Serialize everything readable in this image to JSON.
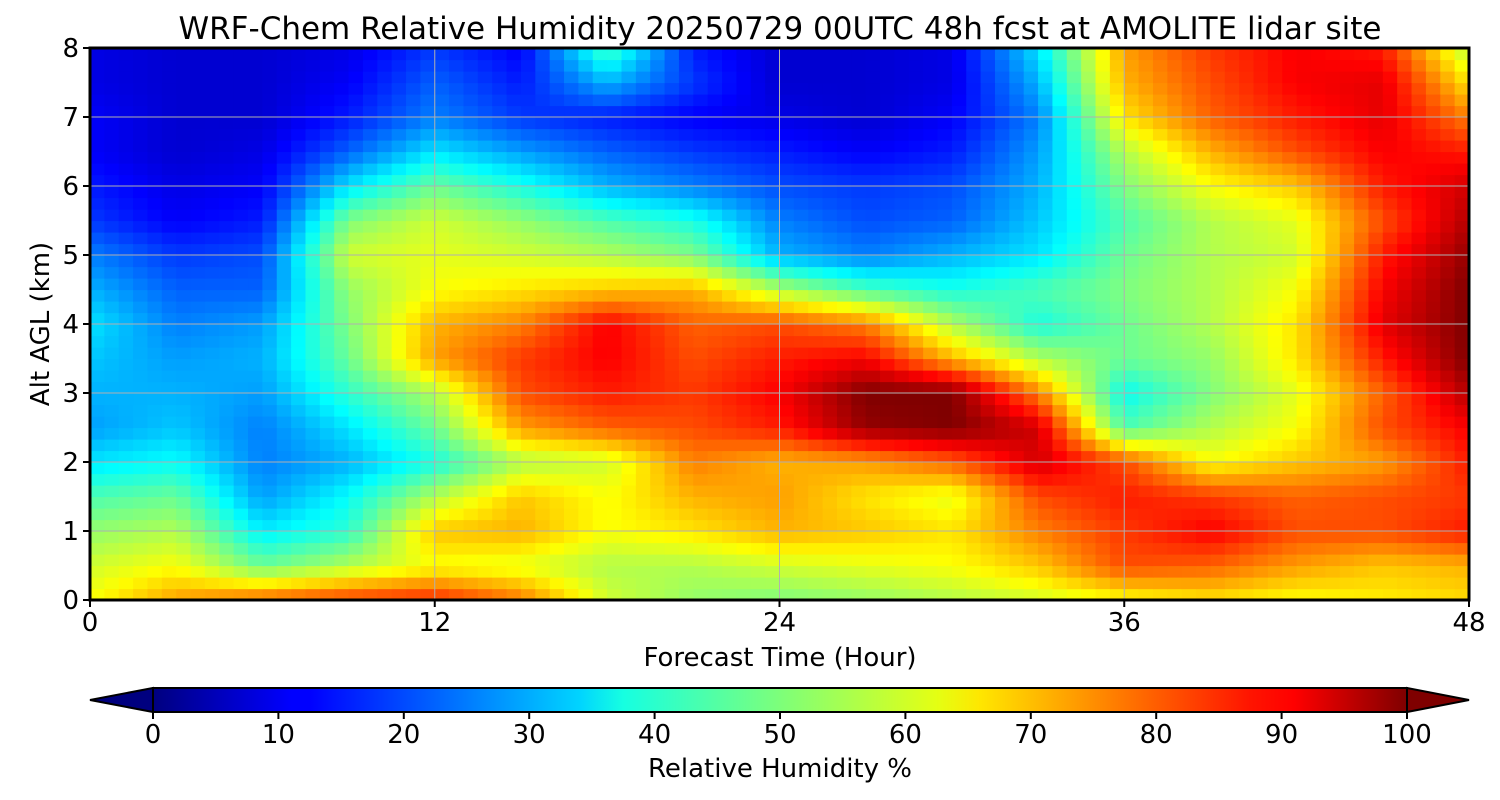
{
  "chart_data": {
    "type": "heatmap",
    "title": "WRF-Chem Relative Humidity 20250729 00UTC 48h fcst at AMOLITE lidar site",
    "xlabel": "Forecast Time (Hour)",
    "ylabel": "Alt AGL (km)",
    "xlim": [
      0,
      48
    ],
    "ylim": [
      0,
      8
    ],
    "x_ticks": [
      "0",
      "12",
      "24",
      "36",
      "48"
    ],
    "y_ticks": [
      "0",
      "1",
      "2",
      "3",
      "4",
      "5",
      "6",
      "7",
      "8"
    ],
    "grid": true,
    "colormap": "jet",
    "colorbar": {
      "label": "Relative Humidity %",
      "range": [
        0,
        100
      ],
      "ticks": [
        "0",
        "10",
        "20",
        "30",
        "40",
        "50",
        "60",
        "70",
        "80",
        "90",
        "100"
      ],
      "extend": "both",
      "orientation": "horizontal"
    },
    "x_hours": [
      0,
      3,
      6,
      9,
      12,
      15,
      18,
      21,
      24,
      27,
      30,
      33,
      36,
      39,
      42,
      45,
      48
    ],
    "y_km": [
      0,
      0.5,
      1,
      1.5,
      2,
      2.5,
      3,
      3.5,
      4,
      4.5,
      5,
      5.5,
      6,
      6.5,
      7,
      7.5,
      8
    ],
    "values": [
      [
        62,
        72,
        78,
        82,
        84,
        76,
        58,
        52,
        50,
        52,
        55,
        58,
        62,
        65,
        62,
        64,
        66
      ],
      [
        58,
        62,
        48,
        55,
        62,
        60,
        55,
        55,
        58,
        60,
        62,
        68,
        80,
        78,
        72,
        68,
        70
      ],
      [
        52,
        55,
        36,
        42,
        68,
        70,
        62,
        65,
        70,
        68,
        65,
        75,
        82,
        88,
        80,
        80,
        85
      ],
      [
        45,
        48,
        28,
        38,
        55,
        68,
        62,
        70,
        72,
        65,
        60,
        80,
        85,
        82,
        78,
        80,
        82
      ],
      [
        35,
        38,
        25,
        30,
        40,
        55,
        58,
        75,
        70,
        72,
        78,
        92,
        80,
        62,
        68,
        72,
        85
      ],
      [
        28,
        32,
        25,
        35,
        48,
        72,
        78,
        80,
        85,
        98,
        100,
        92,
        45,
        55,
        62,
        80,
        88
      ],
      [
        30,
        30,
        28,
        42,
        55,
        80,
        85,
        82,
        88,
        100,
        100,
        75,
        38,
        50,
        60,
        78,
        95
      ],
      [
        32,
        28,
        30,
        48,
        72,
        82,
        88,
        80,
        85,
        88,
        70,
        55,
        48,
        52,
        65,
        85,
        100
      ],
      [
        35,
        25,
        28,
        50,
        70,
        75,
        88,
        78,
        80,
        75,
        55,
        40,
        48,
        55,
        65,
        90,
        100
      ],
      [
        30,
        22,
        22,
        52,
        62,
        65,
        68,
        70,
        55,
        45,
        40,
        45,
        50,
        55,
        62,
        88,
        100
      ],
      [
        25,
        18,
        20,
        58,
        60,
        58,
        55,
        50,
        30,
        25,
        30,
        35,
        48,
        55,
        58,
        85,
        98
      ],
      [
        18,
        12,
        15,
        50,
        58,
        52,
        45,
        40,
        25,
        20,
        22,
        32,
        45,
        55,
        60,
        80,
        95
      ],
      [
        15,
        10,
        12,
        35,
        48,
        40,
        30,
        25,
        20,
        18,
        20,
        30,
        50,
        62,
        68,
        85,
        92
      ],
      [
        12,
        8,
        10,
        22,
        35,
        28,
        22,
        18,
        15,
        12,
        15,
        28,
        55,
        70,
        80,
        88,
        85
      ],
      [
        12,
        8,
        8,
        15,
        25,
        18,
        15,
        12,
        10,
        8,
        12,
        25,
        65,
        78,
        85,
        90,
        75
      ],
      [
        10,
        8,
        8,
        12,
        22,
        15,
        30,
        18,
        8,
        8,
        10,
        30,
        70,
        80,
        88,
        90,
        65
      ],
      [
        10,
        8,
        8,
        10,
        18,
        12,
        45,
        15,
        8,
        8,
        10,
        35,
        72,
        82,
        88,
        85,
        55
      ]
    ]
  }
}
